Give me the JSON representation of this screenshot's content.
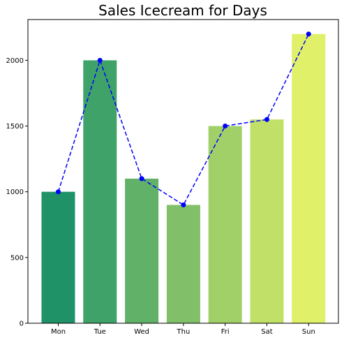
{
  "chart_data": {
    "type": "bar",
    "title": "Sales Icecream for Days",
    "xlabel": "",
    "ylabel": "",
    "categories": [
      "Mon",
      "Tue",
      "Wed",
      "Thu",
      "Fri",
      "Sat",
      "Sun"
    ],
    "values": [
      1000,
      2000,
      1100,
      900,
      1500,
      1550,
      2200
    ],
    "bar_colors": [
      "#1f9268",
      "#3fa268",
      "#61b168",
      "#81c068",
      "#a2d068",
      "#c1e068",
      "#e0f068"
    ],
    "overlay_line": {
      "type": "line",
      "style": "dashed",
      "marker": "circle",
      "color": "#0000ff",
      "values": [
        1000,
        2000,
        1100,
        900,
        1500,
        1550,
        2200
      ]
    },
    "yticks": [
      0,
      500,
      1000,
      1500,
      2000
    ],
    "ylim": [
      0,
      2310
    ],
    "grid": false,
    "legend": "none"
  }
}
